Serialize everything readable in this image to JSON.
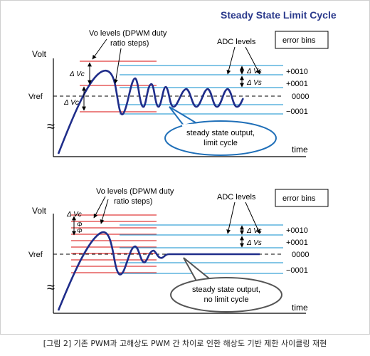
{
  "title": "Steady State Limit Cycle",
  "caption": "[그림 2] 기존 PWM과 고해상도 PWM 간 차이로 인한 해상도 기반 제한 사이클링 재현",
  "colors": {
    "waveform": "#1f2d8a",
    "dpwm_levels": "#e03a3a",
    "adc_levels": "#3aa3d8",
    "title": "#2b3a8c",
    "callout_border": "#1f6fb8"
  },
  "top_panel": {
    "axis_y_label": "Volt",
    "axis_x_label": "time",
    "vref_label": "Vref",
    "vo_levels_label_line1": "Vo levels (DPWM duty",
    "vo_levels_label_line2": "ratio steps)",
    "adc_levels_label": "ADC levels",
    "error_bins_label": "error bins",
    "delta_vc_upper": "Δ Vc",
    "delta_vc_lower": "Δ Vc",
    "delta_vs_upper": "Δ Vs",
    "delta_vs_lower": "Δ Vs",
    "bins": [
      "+0010",
      "+0001",
      "0000",
      "−0001"
    ],
    "callout_line1": "steady state output,",
    "callout_line2": "limit cycle"
  },
  "bottom_panel": {
    "axis_y_label": "Volt",
    "axis_x_label": "time",
    "vref_label": "Vref",
    "vo_levels_label_line1": "Vo levels (DPWM duty",
    "vo_levels_label_line2": "ratio steps)",
    "adc_levels_label": "ADC levels",
    "error_bins_label": "error bins",
    "delta_vc": "Δ Vc",
    "phi_upper": "Φ",
    "phi_lower": "Φ",
    "delta_vs_upper": "Δ Vs",
    "delta_vs_lower": "Δ Vs",
    "bins": [
      "+0010",
      "+0001",
      "0000",
      "−0001"
    ],
    "callout_line1": "steady state output,",
    "callout_line2": "no limit cycle"
  }
}
